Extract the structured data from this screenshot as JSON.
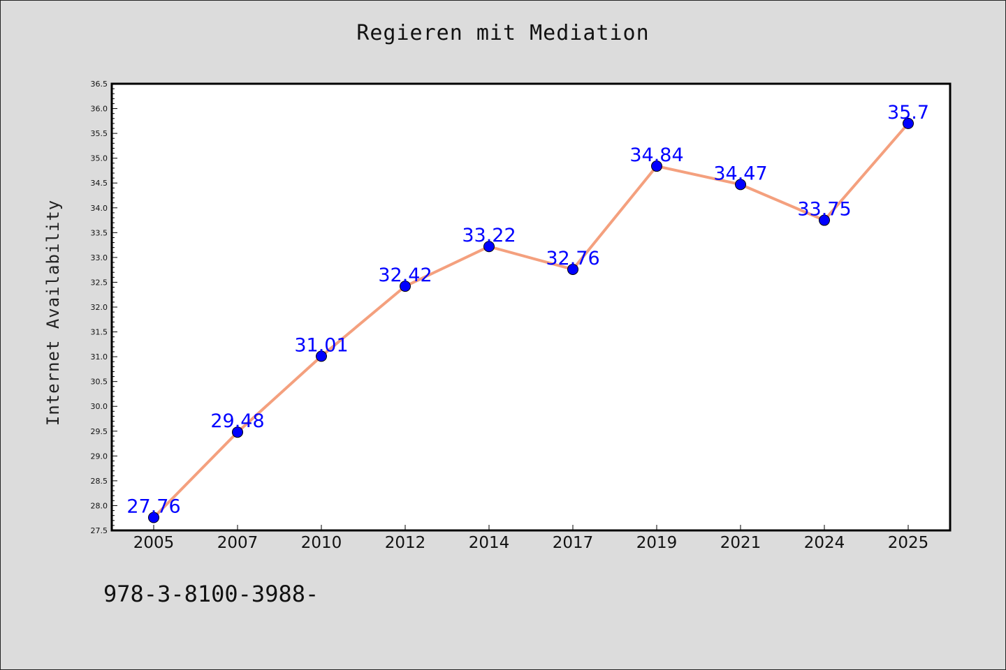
{
  "chart_data": {
    "type": "line",
    "title": "Regieren mit Mediation",
    "xlabel": "",
    "ylabel": "Internet Availability",
    "categories": [
      "2005",
      "2007",
      "2010",
      "2012",
      "2014",
      "2017",
      "2019",
      "2021",
      "2024",
      "2025"
    ],
    "series": [
      {
        "values": [
          27.76,
          29.48,
          31.01,
          32.42,
          33.22,
          32.76,
          34.84,
          34.47,
          33.75,
          35.7
        ],
        "labels": [
          "27.76",
          "29.48",
          "31.01",
          "32.42",
          "33.22",
          "32.76",
          "34.84",
          "34.47",
          "33.75",
          "35.7"
        ]
      }
    ],
    "ylim": [
      27.5,
      36.5
    ],
    "yticks": [
      "27.5",
      "28.0",
      "28.5",
      "29.0",
      "29.5",
      "30.0",
      "30.5",
      "31.0",
      "31.5",
      "32.0",
      "32.5",
      "33.0",
      "33.5",
      "34.0",
      "34.5",
      "35.0",
      "35.5",
      "36.0",
      "36.5"
    ],
    "grid": false,
    "colors": {
      "line": "#f4a07e",
      "marker": "#0000ff",
      "label": "#0000ff",
      "background": "#dcdcdc",
      "plot_background": "#ffffff"
    },
    "footer_text": "978-3-8100-3988-"
  }
}
